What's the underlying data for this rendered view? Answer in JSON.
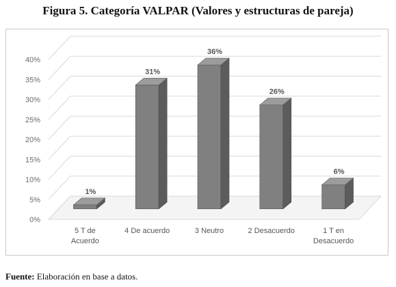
{
  "figure": {
    "title": "Figura 5. Categoría VALPAR (Valores y estructuras de pareja)",
    "source_label": "Fuente:",
    "source_text": " Elaboración en base a datos."
  },
  "chart_data": {
    "type": "bar",
    "categories": [
      [
        "5 T de",
        "Acuerdo"
      ],
      [
        "4 De acuerdo"
      ],
      [
        "3 Neutro"
      ],
      [
        "2 Desacuerdo"
      ],
      [
        "1 T en",
        "Desacuerdo"
      ]
    ],
    "values": [
      1,
      31,
      36,
      26,
      6
    ],
    "value_labels": [
      "1%",
      "31%",
      "36%",
      "26%",
      "6%"
    ],
    "yticks": [
      "0%",
      "5%",
      "10%",
      "15%",
      "20%",
      "25%",
      "30%",
      "35%",
      "40%"
    ],
    "ylim": [
      0,
      40
    ],
    "grid": true,
    "style": "3d-column",
    "bar_color": "#808080",
    "grid_color": "#d9d9d9",
    "xlabel": "",
    "ylabel": ""
  }
}
